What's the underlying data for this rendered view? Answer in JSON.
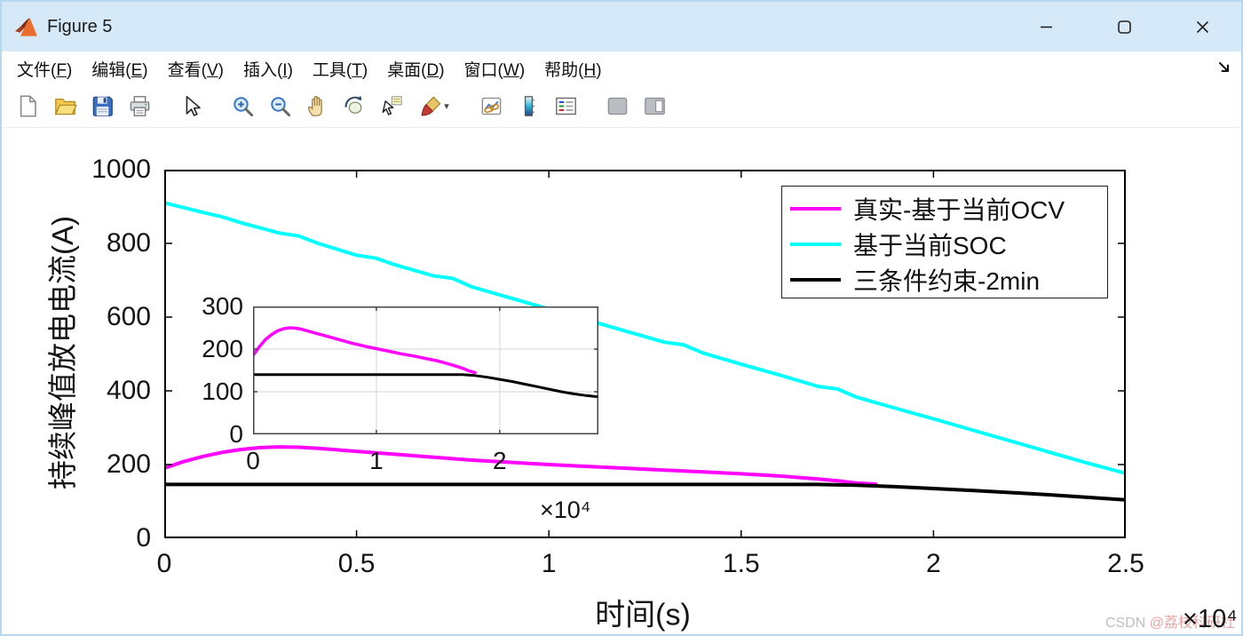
{
  "window": {
    "title": "Figure 5",
    "titlebar_color": "#d5e9f9",
    "controls": [
      "minimize",
      "maximize",
      "close"
    ]
  },
  "menu": {
    "items": [
      {
        "name": "file",
        "text": "文件",
        "key": "F"
      },
      {
        "name": "edit",
        "text": "编辑",
        "key": "E"
      },
      {
        "name": "view",
        "text": "查看",
        "key": "V"
      },
      {
        "name": "insert",
        "text": "插入",
        "key": "I"
      },
      {
        "name": "tools",
        "text": "工具",
        "key": "T"
      },
      {
        "name": "desktop",
        "text": "桌面",
        "key": "D"
      },
      {
        "name": "window",
        "text": "窗口",
        "key": "W"
      },
      {
        "name": "help",
        "text": "帮助",
        "key": "H"
      }
    ]
  },
  "toolbar": {
    "icons": [
      "new-figure",
      "open-file",
      "save-figure",
      "print-figure",
      "edit-plot-pointer",
      "zoom-in",
      "zoom-out",
      "pan",
      "rotate-3d",
      "data-cursor",
      "brush-data",
      "link-plot",
      "insert-colorbar",
      "insert-legend",
      "hide-plot-tools",
      "show-plot-tools-dock"
    ]
  },
  "chart_data": {
    "type": "line",
    "title": "",
    "xlabel": "时间(s)",
    "ylabel": "持续峰值放电电流(A)",
    "x_multiplier": "×10⁴",
    "xlim": [
      0,
      2.5
    ],
    "ylim": [
      0,
      1000
    ],
    "xticks": [
      0,
      0.5,
      1,
      1.5,
      2,
      2.5
    ],
    "yticks": [
      0,
      200,
      400,
      600,
      800,
      1000
    ],
    "grid": false,
    "legend_position": "top-right",
    "legend": [
      {
        "label": "真实-基于当前OCV",
        "color": "#ff00ff"
      },
      {
        "label": "基于当前SOC",
        "color": "#00ffff"
      },
      {
        "label": "三条件约束-2min",
        "color": "#000000"
      }
    ],
    "series": [
      {
        "id": "true-ocv",
        "name": "真实-基于当前OCV",
        "color": "#ff00ff",
        "width": 4,
        "points": [
          [
            0,
            190
          ],
          [
            0.05,
            208
          ],
          [
            0.1,
            222
          ],
          [
            0.15,
            233
          ],
          [
            0.2,
            241
          ],
          [
            0.25,
            246
          ],
          [
            0.3,
            248
          ],
          [
            0.35,
            247
          ],
          [
            0.4,
            244
          ],
          [
            0.45,
            240
          ],
          [
            0.5,
            236
          ],
          [
            0.6,
            228
          ],
          [
            0.7,
            220
          ],
          [
            0.8,
            212
          ],
          [
            0.9,
            206
          ],
          [
            1,
            200
          ],
          [
            1.1,
            195
          ],
          [
            1.2,
            190
          ],
          [
            1.3,
            185
          ],
          [
            1.4,
            180
          ],
          [
            1.5,
            175
          ],
          [
            1.6,
            169
          ],
          [
            1.7,
            161
          ],
          [
            1.75,
            156
          ],
          [
            1.8,
            150
          ],
          [
            1.85,
            147
          ]
        ]
      },
      {
        "id": "soc",
        "name": "基于当前SOC",
        "color": "#00ffff",
        "width": 4,
        "points": [
          [
            0,
            910
          ],
          [
            0.1,
            884
          ],
          [
            0.15,
            872
          ],
          [
            0.2,
            856
          ],
          [
            0.3,
            828
          ],
          [
            0.35,
            820
          ],
          [
            0.4,
            800
          ],
          [
            0.5,
            768
          ],
          [
            0.55,
            760
          ],
          [
            0.6,
            742
          ],
          [
            0.7,
            712
          ],
          [
            0.75,
            705
          ],
          [
            0.8,
            682
          ],
          [
            0.9,
            652
          ],
          [
            1,
            622
          ],
          [
            1.05,
            615
          ],
          [
            1.1,
            592
          ],
          [
            1.2,
            562
          ],
          [
            1.3,
            532
          ],
          [
            1.35,
            525
          ],
          [
            1.4,
            503
          ],
          [
            1.5,
            472
          ],
          [
            1.6,
            443
          ],
          [
            1.7,
            412
          ],
          [
            1.75,
            405
          ],
          [
            1.8,
            383
          ],
          [
            1.9,
            353
          ],
          [
            2,
            324
          ],
          [
            2.1,
            294
          ],
          [
            2.2,
            264
          ],
          [
            2.3,
            234
          ],
          [
            2.4,
            204
          ],
          [
            2.45,
            190
          ],
          [
            2.5,
            176
          ]
        ]
      },
      {
        "id": "three-constraint",
        "name": "三条件约束-2min",
        "color": "#000000",
        "width": 4,
        "points": [
          [
            0,
            146
          ],
          [
            0.5,
            146
          ],
          [
            1,
            146
          ],
          [
            1.5,
            146
          ],
          [
            1.7,
            146
          ],
          [
            1.8,
            144
          ],
          [
            1.9,
            140
          ],
          [
            2,
            135
          ],
          [
            2.1,
            130
          ],
          [
            2.2,
            124
          ],
          [
            2.3,
            118
          ],
          [
            2.4,
            111
          ],
          [
            2.5,
            104
          ]
        ]
      }
    ],
    "inset": {
      "xlim": [
        0,
        2.8
      ],
      "ylim": [
        0,
        300
      ],
      "xticks": [
        0,
        1,
        2
      ],
      "yticks": [
        0,
        100,
        200,
        300
      ],
      "x_multiplier": "×10⁴",
      "grid": true,
      "series": [
        {
          "id": "true-ocv-inset",
          "name": "真实-基于当前OCV",
          "color": "#ff00ff",
          "width": 3.5,
          "points": [
            [
              0,
              185
            ],
            [
              0.05,
              205
            ],
            [
              0.1,
              222
            ],
            [
              0.15,
              234
            ],
            [
              0.2,
              243
            ],
            [
              0.25,
              248
            ],
            [
              0.3,
              250
            ],
            [
              0.35,
              249
            ],
            [
              0.4,
              246
            ],
            [
              0.5,
              238
            ],
            [
              0.6,
              230
            ],
            [
              0.7,
              222
            ],
            [
              0.8,
              214
            ],
            [
              0.9,
              207
            ],
            [
              1,
              201
            ],
            [
              1.1,
              195
            ],
            [
              1.2,
              189
            ],
            [
              1.3,
              184
            ],
            [
              1.4,
              178
            ],
            [
              1.5,
              172
            ],
            [
              1.6,
              164
            ],
            [
              1.7,
              155
            ],
            [
              1.75,
              149
            ],
            [
              1.8,
              145
            ]
          ]
        },
        {
          "id": "three-constraint-inset",
          "name": "三条件约束-2min",
          "color": "#000000",
          "width": 3,
          "points": [
            [
              0,
              140
            ],
            [
              0.5,
              140
            ],
            [
              1,
              140
            ],
            [
              1.5,
              140
            ],
            [
              1.7,
              140
            ],
            [
              1.8,
              138
            ],
            [
              1.9,
              134
            ],
            [
              2,
              129
            ],
            [
              2.1,
              124
            ],
            [
              2.2,
              118
            ],
            [
              2.3,
              112
            ],
            [
              2.4,
              106
            ],
            [
              2.5,
              100
            ],
            [
              2.6,
              95
            ],
            [
              2.7,
              91
            ],
            [
              2.8,
              88
            ]
          ]
        }
      ]
    }
  },
  "watermark": {
    "prefix": "CSDN",
    "handle": "@荔枝科研社",
    "prefix_color": "#bfbfbf",
    "handle_color": "#e6a2a2"
  }
}
